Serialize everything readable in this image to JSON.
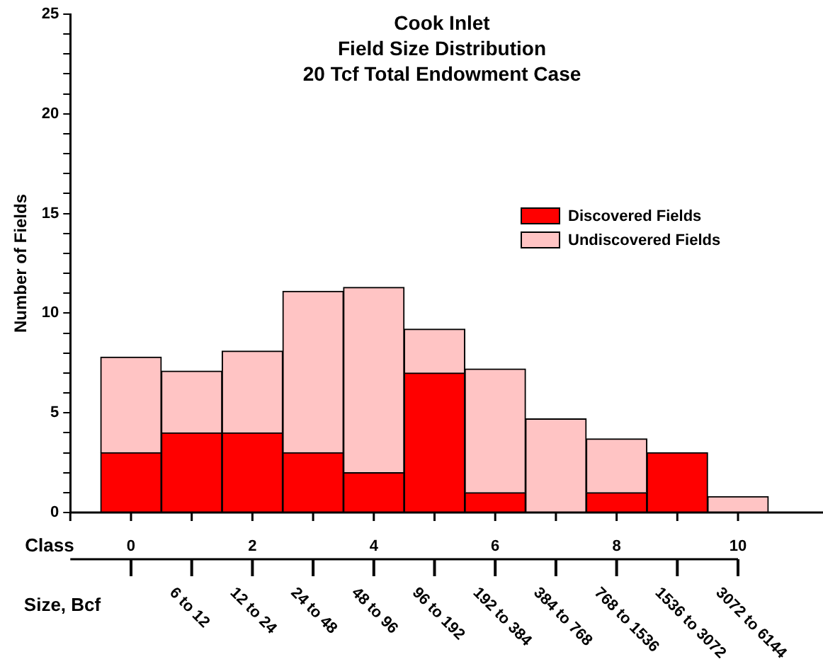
{
  "chart_data": {
    "type": "bar",
    "stacked": true,
    "title": "Cook Inlet\nField Size Distribution\n20 Tcf Total Endowment Case",
    "xlabel": "Class",
    "ylabel": "Number of Fields",
    "x": [
      0,
      1,
      2,
      3,
      4,
      5,
      6,
      7,
      8,
      9,
      10
    ],
    "series": [
      {
        "name": "Discovered Fields",
        "color": "#ff0000",
        "values": [
          3,
          4,
          4,
          3,
          2,
          7,
          1,
          0,
          1,
          3,
          0
        ]
      },
      {
        "name": "Undiscovered Fields",
        "color": "#ffc4c4",
        "values": [
          4.8,
          3.1,
          4.1,
          8.1,
          9.3,
          2.2,
          6.2,
          4.7,
          2.7,
          0,
          0.8
        ]
      }
    ],
    "xlim": [
      -1,
      11.4
    ],
    "xticks": [
      {
        "value": -1,
        "label": null
      },
      0,
      {
        "value": 1,
        "label": null
      },
      2,
      {
        "value": 3,
        "label": null
      },
      4,
      {
        "value": 5,
        "label": null
      },
      6,
      {
        "value": 7,
        "label": null
      },
      8,
      {
        "value": 9,
        "label": null
      },
      10
    ],
    "annotations": [
      "Size, Bcf",
      "6 to 12",
      "12 to 24",
      "24 to 48",
      "48 to 96",
      "96 to 192",
      "192 to 384",
      "384 to 768",
      "768 to 1536",
      "1536 to 3072",
      "3072 to 6144"
    ],
    "ylim": [
      0,
      25
    ],
    "yticks": [
      0,
      {
        "value": 1,
        "label": null
      },
      {
        "value": 2,
        "label": null
      },
      {
        "value": 3,
        "label": null
      },
      {
        "value": 4,
        "label": null
      },
      5,
      {
        "value": 6,
        "label": null
      },
      {
        "value": 7,
        "label": null
      },
      {
        "value": 8,
        "label": null
      },
      {
        "value": 9,
        "label": null
      },
      10,
      {
        "value": 11,
        "label": null
      },
      {
        "value": 12,
        "label": null
      },
      {
        "value": 13,
        "label": null
      },
      {
        "value": 14,
        "label": null
      },
      15,
      {
        "value": 16,
        "label": null
      },
      {
        "value": 17,
        "label": null
      },
      {
        "value": 18,
        "label": null
      },
      {
        "value": 19,
        "label": null
      },
      20,
      {
        "value": 21,
        "label": null
      },
      {
        "value": 22,
        "label": null
      },
      {
        "value": 23,
        "label": null
      },
      {
        "value": 24,
        "label": null
      },
      25
    ],
    "grid": false,
    "legend": "top right"
  }
}
